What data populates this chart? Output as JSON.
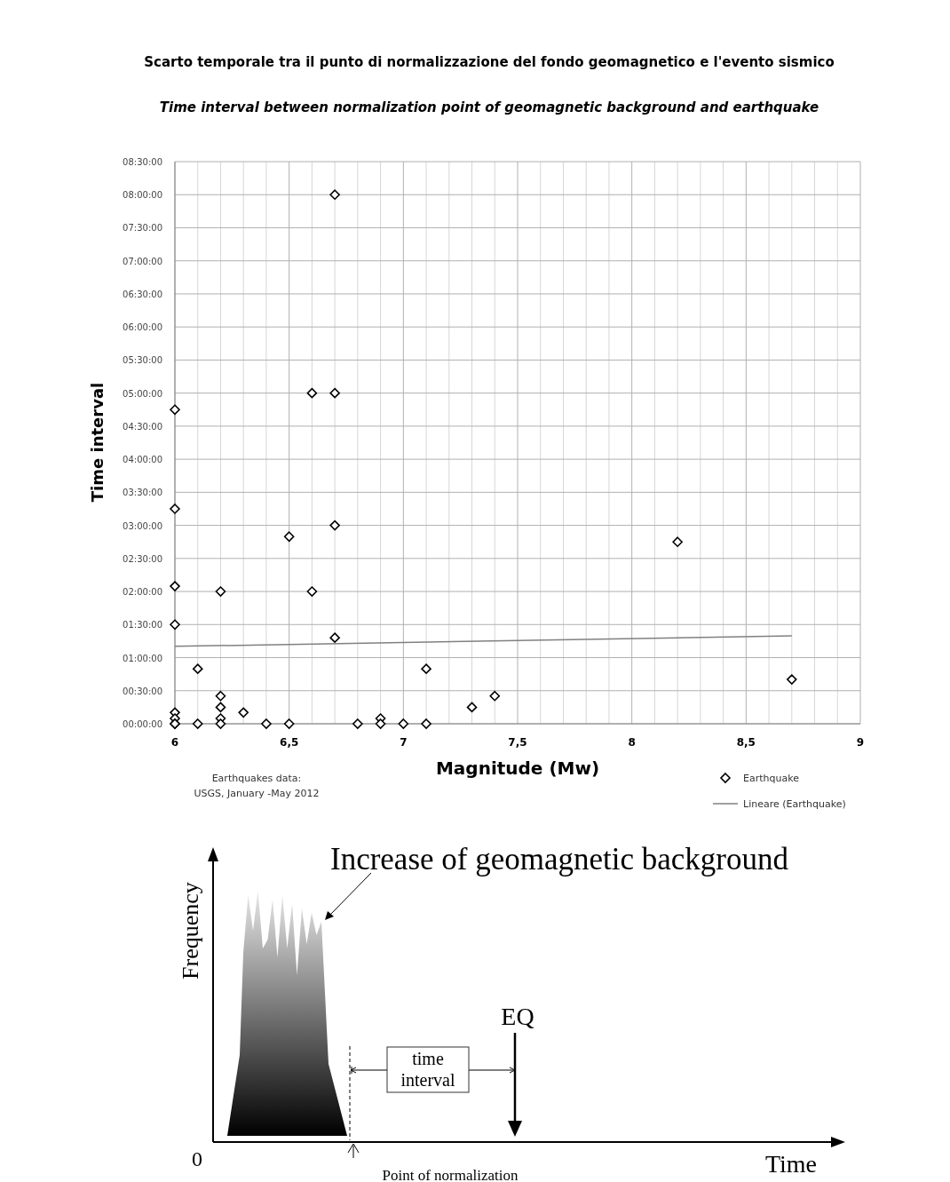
{
  "chart_data": [
    {
      "type": "scatter",
      "title": "Scarto temporale tra il punto di normalizzazione del fondo geomagnetico e l'evento sismico",
      "subtitle": "Time interval between normalization point of geomagnetic background and  earthquake",
      "xlabel": "Magnitude (Mw)",
      "ylabel": "Time interval",
      "annotations": [
        "Earthquakes data:\nUSGS, January -May 2012"
      ],
      "series": [
        {
          "name": "Earthquake",
          "color": "#000000",
          "marker": "diamond",
          "x": [
            6.7,
            6.6,
            6.7,
            6.0,
            6.0,
            6.7,
            6.5,
            8.2,
            6.0,
            6.2,
            6.6,
            6.0,
            6.7,
            6.1,
            7.1,
            8.7,
            6.2,
            7.4,
            6.2,
            7.3,
            6.3,
            6.0,
            6.0,
            6.0,
            6.0,
            6.2,
            6.2,
            6.1,
            6.4,
            6.5,
            6.8,
            6.9,
            6.9,
            7.0,
            7.1
          ],
          "values": [
            8.0,
            5.0,
            5.0,
            4.75,
            3.25,
            3.0,
            2.83,
            2.75,
            2.08,
            2.0,
            2.0,
            1.5,
            1.3,
            0.83,
            0.83,
            0.67,
            0.42,
            0.42,
            0.25,
            0.25,
            0.17,
            0.17,
            0.08,
            0,
            0,
            0.08,
            0,
            0,
            0,
            0,
            0,
            0.08,
            0,
            0,
            0
          ]
        },
        {
          "name": "Lineare (Earthquake)",
          "type": "line",
          "color": "#808080",
          "marker": "none",
          "x": [
            6.0,
            8.7
          ],
          "values": [
            1.17,
            1.33
          ]
        }
      ],
      "xlim": [
        6,
        9
      ],
      "ylim": [
        0,
        8.5
      ],
      "xticks": [
        6,
        {
          "value": 6.1,
          "label": null
        },
        {
          "value": 6.2,
          "label": null
        },
        {
          "value": 6.3,
          "label": null
        },
        {
          "value": 6.4,
          "label": null
        },
        {
          "value": 6.5,
          "label": "6,5"
        },
        {
          "value": 6.6,
          "label": null
        },
        {
          "value": 6.7,
          "label": null
        },
        {
          "value": 6.8,
          "label": null
        },
        {
          "value": 6.9,
          "label": null
        },
        7,
        {
          "value": 7.1,
          "label": null
        },
        {
          "value": 7.2,
          "label": null
        },
        {
          "value": 7.3,
          "label": null
        },
        {
          "value": 7.4,
          "label": null
        },
        {
          "value": 7.5,
          "label": "7,5"
        },
        {
          "value": 7.6,
          "label": null
        },
        {
          "value": 7.7,
          "label": null
        },
        {
          "value": 7.8,
          "label": null
        },
        {
          "value": 7.9,
          "label": null
        },
        8,
        {
          "value": 8.1,
          "label": null
        },
        {
          "value": 8.2,
          "label": null
        },
        {
          "value": 8.3,
          "label": null
        },
        {
          "value": 8.4,
          "label": null
        },
        {
          "value": 8.5,
          "label": "8,5"
        },
        {
          "value": 8.6,
          "label": null
        },
        {
          "value": 8.7,
          "label": null
        },
        {
          "value": 8.8,
          "label": null
        },
        {
          "value": 8.9,
          "label": null
        },
        9
      ],
      "yticks": [
        {
          "value": 0,
          "label": "00:00:00"
        },
        {
          "value": 0.5,
          "label": "00:30:00"
        },
        {
          "value": 1,
          "label": "01:00:00"
        },
        {
          "value": 1.5,
          "label": "01:30:00"
        },
        {
          "value": 2,
          "label": "02:00:00"
        },
        {
          "value": 2.5,
          "label": "02:30:00"
        },
        {
          "value": 3,
          "label": "03:00:00"
        },
        {
          "value": 3.5,
          "label": "03:30:00"
        },
        {
          "value": 4,
          "label": "04:00:00"
        },
        {
          "value": 4.5,
          "label": "04:30:00"
        },
        {
          "value": 5,
          "label": "05:00:00"
        },
        {
          "value": 5.5,
          "label": "05:30:00"
        },
        {
          "value": 6,
          "label": "06:00:00"
        },
        {
          "value": 6.5,
          "label": "06:30:00"
        },
        {
          "value": 7,
          "label": "07:00:00"
        },
        {
          "value": 7.5,
          "label": "07:30:00"
        },
        {
          "value": 8,
          "label": "08:00:00"
        },
        {
          "value": 8.5,
          "label": "08:30:00"
        }
      ],
      "grid": true,
      "legend": "bottom right"
    },
    {
      "type": "other",
      "title": "Increase of geomagnetic background",
      "xlabel": "Time",
      "ylabel": "Frequency",
      "annotations": [
        "0",
        "EQ",
        "time\ninterval",
        "Point of normalization"
      ]
    }
  ]
}
